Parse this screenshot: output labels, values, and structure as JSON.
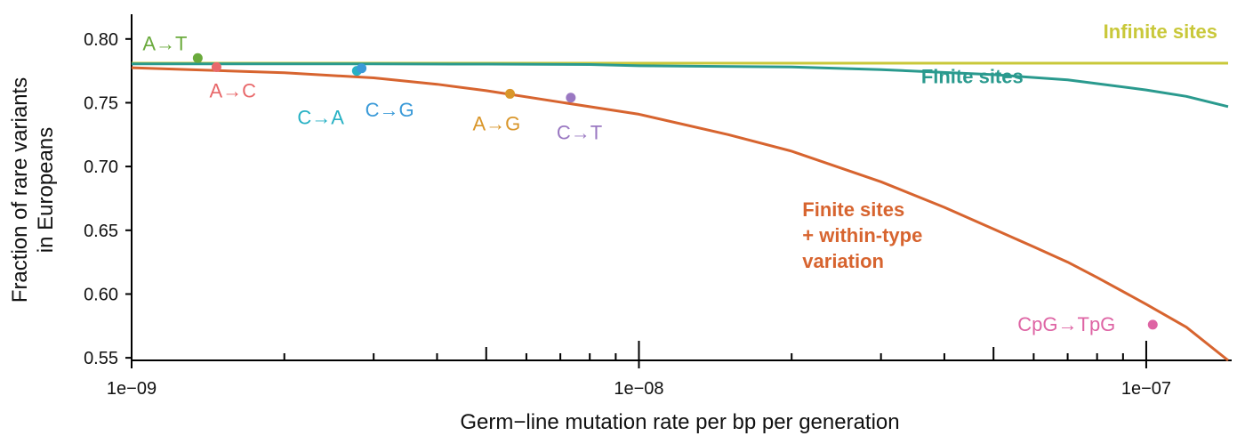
{
  "chart_data": {
    "type": "line",
    "xlabel": "Germ−line mutation rate per bp per generation",
    "ylabel_lines": [
      "Fraction of rare variants",
      "in Europeans"
    ],
    "x_scale": "log",
    "xlim": [
      1e-09,
      1.45e-07
    ],
    "ylim": [
      0.548,
      0.818
    ],
    "x_ticks": [
      {
        "value": 1e-09,
        "label": "1e−09"
      },
      {
        "value": 1e-08,
        "label": "1e−08"
      },
      {
        "value": 1e-07,
        "label": "1e−07"
      }
    ],
    "x_minor_ticks": [
      2e-09,
      3e-09,
      4e-09,
      5e-09,
      6e-09,
      7e-09,
      8e-09,
      9e-09,
      2e-08,
      3e-08,
      4e-08,
      5e-08,
      6e-08,
      7e-08,
      8e-08,
      9e-08
    ],
    "x_mid_ticks": [
      5e-09,
      5e-08
    ],
    "y_ticks": [
      0.8,
      0.75,
      0.7,
      0.65,
      0.6,
      0.55
    ],
    "y_tick_labels": [
      "0.80",
      "0.75",
      "0.70",
      "0.65",
      "0.60",
      "0.55"
    ],
    "series": [
      {
        "name": "Infinite sites",
        "color": "#c9c83a",
        "x": [
          1e-09,
          1.45e-07
        ],
        "y": [
          0.781,
          0.781
        ]
      },
      {
        "name": "Finite sites",
        "color": "#2a9a8e",
        "x": [
          1e-09,
          2e-09,
          3e-09,
          5e-09,
          8e-09,
          1e-08,
          2e-08,
          3e-08,
          5e-08,
          7e-08,
          1e-07,
          1.2e-07,
          1.45e-07
        ],
        "y": [
          0.7805,
          0.7805,
          0.7805,
          0.7803,
          0.78,
          0.779,
          0.778,
          0.776,
          0.772,
          0.768,
          0.76,
          0.755,
          0.747
        ]
      },
      {
        "name": "Finite sites + within-type variation",
        "name_lines": [
          "Finite sites",
          "+ within-type",
          "variation"
        ],
        "color": "#d7642f",
        "x": [
          1e-09,
          2e-09,
          3e-09,
          4e-09,
          5e-09,
          7e-09,
          1e-08,
          1.5e-08,
          2e-08,
          3e-08,
          4e-08,
          5e-08,
          6e-08,
          7e-08,
          8e-08,
          1e-07,
          1.2e-07,
          1.45e-07
        ],
        "y": [
          0.7775,
          0.7735,
          0.7695,
          0.7645,
          0.7595,
          0.7505,
          0.741,
          0.725,
          0.712,
          0.688,
          0.668,
          0.651,
          0.637,
          0.625,
          0.613,
          0.592,
          0.574,
          0.548
        ]
      }
    ],
    "points": [
      {
        "label": "A→T",
        "x": 1.35e-09,
        "y": 0.785,
        "color": "#6aaa3c",
        "label_dx": -62,
        "label_dy": -16
      },
      {
        "label": "A→C",
        "x": 1.47e-09,
        "y": 0.778,
        "color": "#e8686a",
        "label_dx": -8,
        "label_dy": 27
      },
      {
        "label": "C→A",
        "x": 2.78e-09,
        "y": 0.775,
        "color": "#27b1c4",
        "label_dx": -67,
        "label_dy": 53
      },
      {
        "label": "C→G",
        "x": 2.84e-09,
        "y": 0.777,
        "color": "#3a9ad8",
        "label_dx": 4,
        "label_dy": 47
      },
      {
        "label": "A→G",
        "x": 5.57e-09,
        "y": 0.757,
        "color": "#d9962a",
        "label_dx": -42,
        "label_dy": 34
      },
      {
        "label": "C→T",
        "x": 7.34e-09,
        "y": 0.754,
        "color": "#9a78c2",
        "label_dx": -16,
        "label_dy": 40
      },
      {
        "label": "CpG→TpG",
        "x": 1.03e-07,
        "y": 0.576,
        "color": "#de64a4",
        "label_dx": -152,
        "label_dy": 0
      }
    ],
    "annotations": [
      {
        "text": "Infinite sites",
        "series": 0,
        "anchor_x": 2.3e-08,
        "anchor_y": 0.8005,
        "align": "end"
      },
      {
        "text": "Finite sites",
        "series": 1,
        "anchor_x": 3.6e-08,
        "anchor_y": 0.7655,
        "align": "start"
      }
    ]
  }
}
